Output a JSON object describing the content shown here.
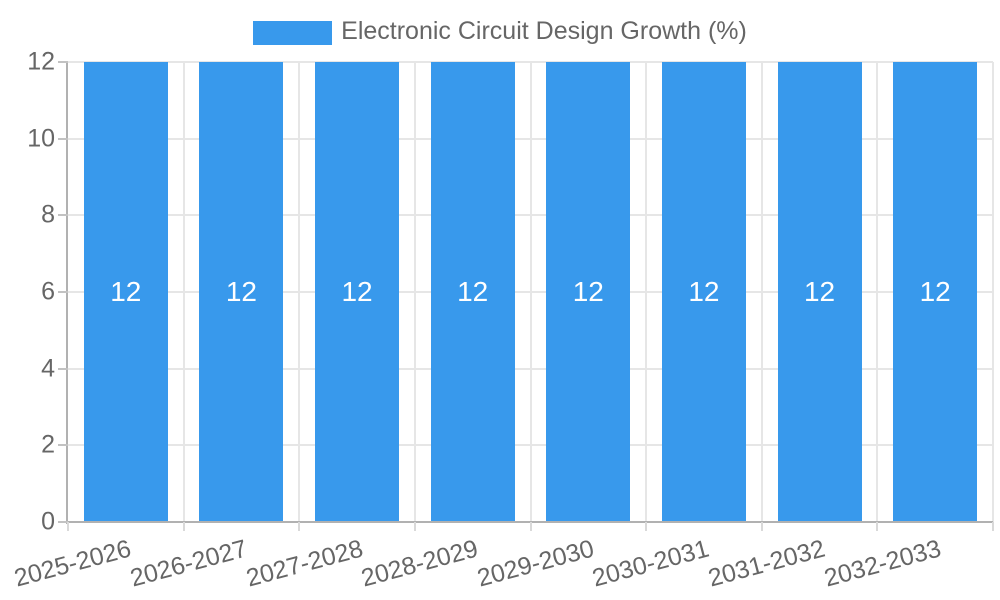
{
  "legend": {
    "label": "Electronic Circuit Design Growth (%)"
  },
  "chart_data": {
    "type": "bar",
    "title": "Electronic Circuit Design Growth (%)",
    "categories": [
      "2025-2026",
      "2026-2027",
      "2027-2028",
      "2028-2029",
      "2029-2030",
      "2030-2031",
      "2031-2032",
      "2032-2033"
    ],
    "values": [
      12,
      12,
      12,
      12,
      12,
      12,
      12,
      12
    ],
    "bar_labels": [
      "12",
      "12",
      "12",
      "12",
      "12",
      "12",
      "12",
      "12"
    ],
    "yticks": [
      0,
      2,
      4,
      6,
      8,
      10,
      12
    ],
    "ylim": [
      0,
      12
    ],
    "xlabel": "",
    "ylabel": "",
    "grid": true,
    "legend_position": "top",
    "bar_color": "#3899ec",
    "bar_label_color": "#ffffff",
    "text_color": "#666666",
    "gridline_color": "#e6e6e6",
    "axis_line_color": "#b1b1b1"
  }
}
